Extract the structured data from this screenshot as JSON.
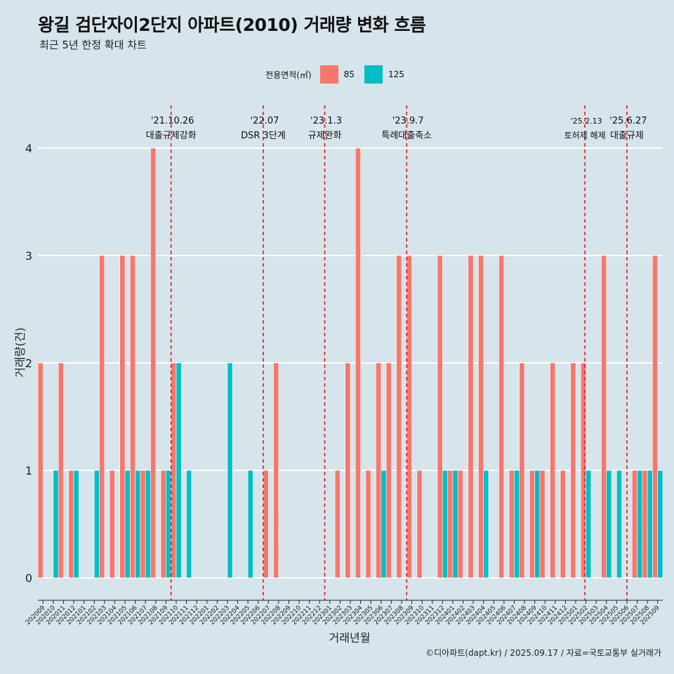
{
  "title": "왕길 검단자이2단지 아파트(2010) 거래량 변화 흐름",
  "subtitle": "최근 5년 한정 확대 차트",
  "legend": {
    "title": "전용면적(㎡)",
    "items": [
      {
        "label": "85",
        "color": "#f8766d"
      },
      {
        "label": "125",
        "color": "#00bfc4"
      }
    ]
  },
  "caption": "©디아파트(dapt.kr) / 2025.09.17 / 자료=국토교통부 실거래가",
  "chart_data": {
    "type": "bar",
    "xlabel": "거래년월",
    "ylabel": "거래량(건)",
    "ylim": [
      0,
      4
    ],
    "yticks": [
      0,
      1,
      2,
      3,
      4
    ],
    "grid": true,
    "legend_position": "top",
    "categories": [
      "202009",
      "202010",
      "202011",
      "202012",
      "202101",
      "202102",
      "202103",
      "202104",
      "202105",
      "202106",
      "202107",
      "202108",
      "202109",
      "202110",
      "202111",
      "202112",
      "202201",
      "202202",
      "202203",
      "202204",
      "202205",
      "202206",
      "202207",
      "202208",
      "202209",
      "202210",
      "202211",
      "202212",
      "202301",
      "202302",
      "202303",
      "202304",
      "202305",
      "202306",
      "202307",
      "202308",
      "202309",
      "202310",
      "202311",
      "202312",
      "202401",
      "202402",
      "202403",
      "202404",
      "202405",
      "202406",
      "202407",
      "202408",
      "202409",
      "202410",
      "202411",
      "202412",
      "202501",
      "202502",
      "202503",
      "202504",
      "202505",
      "202506",
      "202507",
      "202508",
      "202509"
    ],
    "series": [
      {
        "name": "85",
        "color": "#f8766d",
        "values": [
          2,
          0,
          2,
          1,
          0,
          0,
          3,
          1,
          3,
          3,
          1,
          4,
          1,
          2,
          0,
          0,
          0,
          0,
          0,
          0,
          0,
          0,
          1,
          2,
          0,
          0,
          0,
          0,
          0,
          1,
          2,
          4,
          1,
          2,
          2,
          3,
          3,
          1,
          0,
          3,
          1,
          1,
          3,
          3,
          0,
          3,
          1,
          2,
          1,
          1,
          2,
          1,
          2,
          2,
          0,
          3,
          0,
          0,
          1,
          1,
          3
        ]
      },
      {
        "name": "125",
        "color": "#00bfc4",
        "values": [
          0,
          1,
          0,
          1,
          0,
          1,
          0,
          0,
          1,
          1,
          1,
          0,
          1,
          2,
          1,
          0,
          0,
          0,
          2,
          0,
          1,
          0,
          0,
          0,
          0,
          0,
          0,
          0,
          0,
          0,
          0,
          0,
          0,
          1,
          0,
          0,
          0,
          0,
          0,
          1,
          1,
          0,
          0,
          1,
          0,
          0,
          1,
          0,
          1,
          0,
          0,
          0,
          0,
          1,
          0,
          1,
          1,
          0,
          1,
          1,
          1
        ]
      }
    ],
    "events": [
      {
        "date": "'21.10.26",
        "label": "대출규제강화",
        "at": 13.0
      },
      {
        "date": "'22.07",
        "label": "DSR 3단계",
        "at": 22.0
      },
      {
        "date": "'23.1.3",
        "label": "규제완화",
        "at": 28.0
      },
      {
        "date": "'23.9.7",
        "label": "특례대출축소",
        "at": 36.0
      },
      {
        "date": "'25.2.13",
        "label": "토허제 해제",
        "at": 53.4
      },
      {
        "date": "'25.6.27",
        "label": "대출규제",
        "at": 57.5
      }
    ]
  }
}
